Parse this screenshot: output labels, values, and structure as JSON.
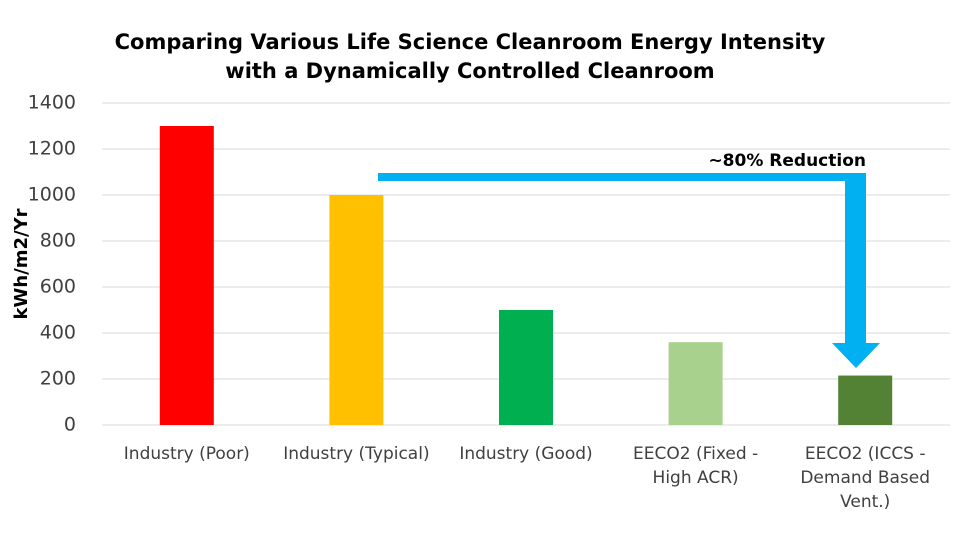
{
  "chart_data": {
    "type": "bar",
    "title": "Comparing Various Life Science Cleanroom Energy Intensity\nwith a Dynamically Controlled Cleanroom",
    "y_label": "kWh/m2/Yr",
    "categories": [
      "Industry (Poor)",
      "Industry (Typical)",
      "Industry (Good)",
      "EECO2 (Fixed -\nHigh ACR)",
      "EECO2 (ICCS -\nDemand Based\nVent.)"
    ],
    "values": [
      1300,
      1000,
      500,
      360,
      215
    ],
    "colors": [
      "#ff0000",
      "#ffc000",
      "#00b050",
      "#a9d18e",
      "#548235"
    ],
    "ylim": [
      0,
      1400
    ],
    "yticks": [
      0,
      200,
      400,
      600,
      800,
      1000,
      1200,
      1400
    ],
    "grid": true,
    "annotation": "~80% Reduction"
  }
}
